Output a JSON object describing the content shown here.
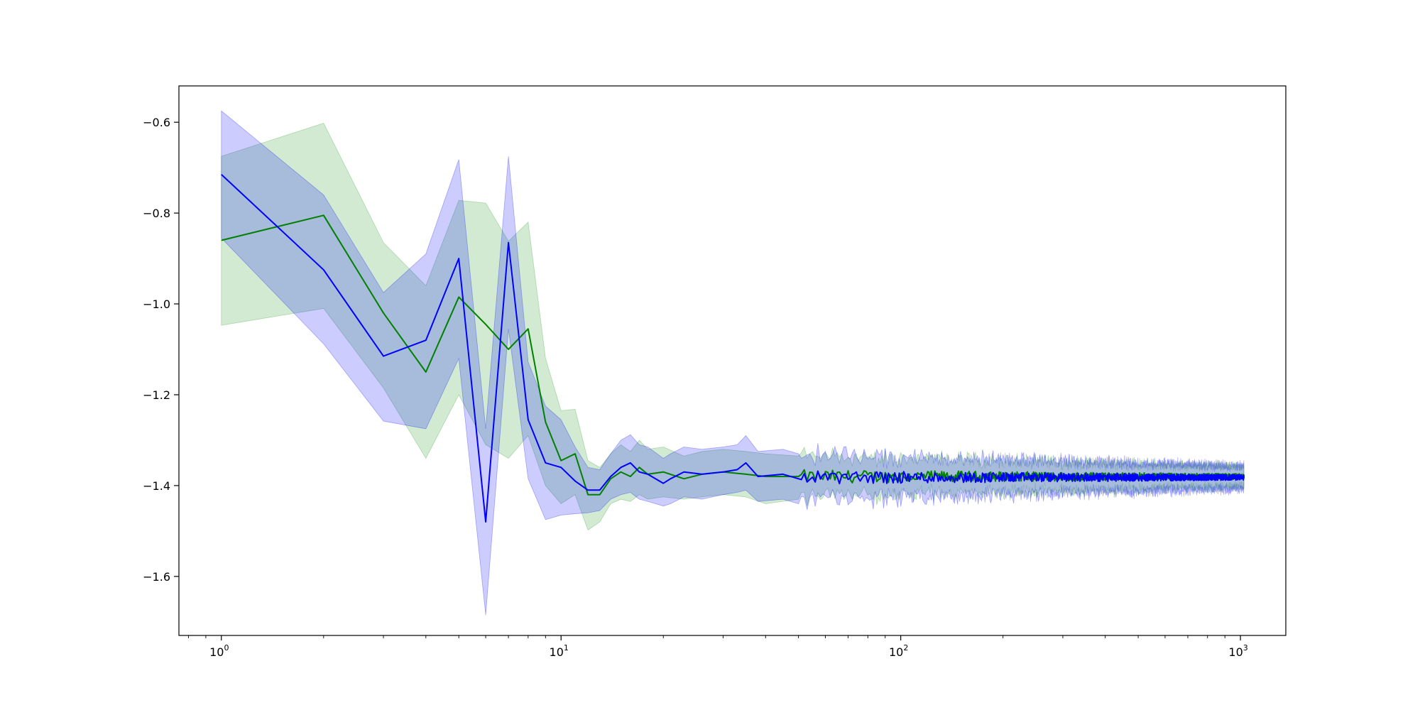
{
  "chart_data": {
    "type": "line",
    "title": "",
    "xlabel": "",
    "ylabel": "",
    "xscale": "log",
    "xlim": [
      0.75,
      1360
    ],
    "ylim": [
      -1.73,
      -0.52
    ],
    "grid": false,
    "legend": "none",
    "x_ticks": [
      {
        "base": "10",
        "exp": "0",
        "value": 1
      },
      {
        "base": "10",
        "exp": "1",
        "value": 10
      },
      {
        "base": "10",
        "exp": "2",
        "value": 100
      },
      {
        "base": "10",
        "exp": "3",
        "value": 1000
      }
    ],
    "y_ticks": [
      {
        "label": "−0.6",
        "value": -0.6
      },
      {
        "label": "−0.8",
        "value": -0.8
      },
      {
        "label": "−1.0",
        "value": -1.0
      },
      {
        "label": "−1.2",
        "value": -1.2
      },
      {
        "label": "−1.4",
        "value": -1.4
      },
      {
        "label": "−1.6",
        "value": -1.6
      }
    ],
    "series": [
      {
        "color": "#008000",
        "band_color": "#2ca02c",
        "band_opacity": 0.22,
        "x_max": 1024,
        "tail_mean": -1.38,
        "tail_band_halfwidth": [
          0.045,
          0.022
        ],
        "points": [
          {
            "x": 1,
            "y": -0.86,
            "lo": -1.047,
            "hi": -0.675
          },
          {
            "x": 2,
            "y": -0.805,
            "lo": -1.01,
            "hi": -0.602
          },
          {
            "x": 3,
            "y": -1.02,
            "lo": -1.185,
            "hi": -0.865
          },
          {
            "x": 4,
            "y": -1.15,
            "lo": -1.34,
            "hi": -0.96
          },
          {
            "x": 5,
            "y": -0.985,
            "lo": -1.2,
            "hi": -0.772
          },
          {
            "x": 6,
            "y": -1.045,
            "lo": -1.31,
            "hi": -0.778
          },
          {
            "x": 7,
            "y": -1.1,
            "lo": -1.34,
            "hi": -0.862
          },
          {
            "x": 8,
            "y": -1.055,
            "lo": -1.29,
            "hi": -0.82
          },
          {
            "x": 9,
            "y": -1.26,
            "lo": -1.4,
            "hi": -1.12
          },
          {
            "x": 10,
            "y": -1.345,
            "lo": -1.44,
            "hi": -1.235
          },
          {
            "x": 11,
            "y": -1.33,
            "lo": -1.42,
            "hi": -1.232
          },
          {
            "x": 12,
            "y": -1.42,
            "lo": -1.498,
            "hi": -1.345
          },
          {
            "x": 13,
            "y": -1.42,
            "lo": -1.48,
            "hi": -1.36
          },
          {
            "x": 14,
            "y": -1.385,
            "lo": -1.44,
            "hi": -1.33
          },
          {
            "x": 15,
            "y": -1.37,
            "lo": -1.43,
            "hi": -1.31
          },
          {
            "x": 16,
            "y": -1.38,
            "lo": -1.435,
            "hi": -1.325
          },
          {
            "x": 17,
            "y": -1.36,
            "lo": -1.42,
            "hi": -1.3
          },
          {
            "x": 18,
            "y": -1.375,
            "lo": -1.43,
            "hi": -1.32
          },
          {
            "x": 20,
            "y": -1.37,
            "lo": -1.425,
            "hi": -1.315
          },
          {
            "x": 23,
            "y": -1.385,
            "lo": -1.43,
            "hi": -1.335
          },
          {
            "x": 26,
            "y": -1.375,
            "lo": -1.425,
            "hi": -1.325
          },
          {
            "x": 30,
            "y": -1.37,
            "lo": -1.42,
            "hi": -1.32
          },
          {
            "x": 35,
            "y": -1.375,
            "lo": -1.425,
            "hi": -1.325
          },
          {
            "x": 40,
            "y": -1.38,
            "lo": -1.44,
            "hi": -1.33
          },
          {
            "x": 50,
            "y": -1.38,
            "lo": -1.43,
            "hi": -1.335
          }
        ]
      },
      {
        "color": "#0000ff",
        "band_color": "#0000ff",
        "band_opacity": 0.2,
        "x_max": 1024,
        "tail_mean": -1.382,
        "tail_band_halfwidth": [
          0.05,
          0.025
        ],
        "points": [
          {
            "x": 1,
            "y": -0.715,
            "lo": -0.855,
            "hi": -0.575
          },
          {
            "x": 2,
            "y": -0.925,
            "lo": -1.088,
            "hi": -0.76
          },
          {
            "x": 3,
            "y": -1.115,
            "lo": -1.258,
            "hi": -0.975
          },
          {
            "x": 4,
            "y": -1.08,
            "lo": -1.275,
            "hi": -0.89
          },
          {
            "x": 5,
            "y": -0.9,
            "lo": -1.12,
            "hi": -0.682
          },
          {
            "x": 6,
            "y": -1.48,
            "lo": -1.685,
            "hi": -1.275
          },
          {
            "x": 7,
            "y": -0.865,
            "lo": -1.055,
            "hi": -0.675
          },
          {
            "x": 8,
            "y": -1.255,
            "lo": -1.385,
            "hi": -1.128
          },
          {
            "x": 9,
            "y": -1.35,
            "lo": -1.475,
            "hi": -1.225
          },
          {
            "x": 10,
            "y": -1.36,
            "lo": -1.465,
            "hi": -1.255
          },
          {
            "x": 11,
            "y": -1.39,
            "lo": -1.462,
            "hi": -1.315
          },
          {
            "x": 12,
            "y": -1.41,
            "lo": -1.46,
            "hi": -1.36
          },
          {
            "x": 13,
            "y": -1.41,
            "lo": -1.455,
            "hi": -1.365
          },
          {
            "x": 14,
            "y": -1.38,
            "lo": -1.43,
            "hi": -1.33
          },
          {
            "x": 15,
            "y": -1.36,
            "lo": -1.42,
            "hi": -1.3
          },
          {
            "x": 16,
            "y": -1.35,
            "lo": -1.415,
            "hi": -1.288
          },
          {
            "x": 17,
            "y": -1.37,
            "lo": -1.43,
            "hi": -1.31
          },
          {
            "x": 18,
            "y": -1.375,
            "lo": -1.435,
            "hi": -1.315
          },
          {
            "x": 20,
            "y": -1.395,
            "lo": -1.445,
            "hi": -1.34
          },
          {
            "x": 21,
            "y": -1.385,
            "lo": -1.44,
            "hi": -1.33
          },
          {
            "x": 23,
            "y": -1.37,
            "lo": -1.425,
            "hi": -1.315
          },
          {
            "x": 26,
            "y": -1.375,
            "lo": -1.43,
            "hi": -1.32
          },
          {
            "x": 30,
            "y": -1.37,
            "lo": -1.42,
            "hi": -1.315
          },
          {
            "x": 33,
            "y": -1.365,
            "lo": -1.415,
            "hi": -1.31
          },
          {
            "x": 35,
            "y": -1.35,
            "lo": -1.41,
            "hi": -1.29
          },
          {
            "x": 38,
            "y": -1.38,
            "lo": -1.435,
            "hi": -1.325
          },
          {
            "x": 45,
            "y": -1.375,
            "lo": -1.43,
            "hi": -1.32
          },
          {
            "x": 50,
            "y": -1.385,
            "lo": -1.44,
            "hi": -1.33
          }
        ]
      }
    ]
  }
}
